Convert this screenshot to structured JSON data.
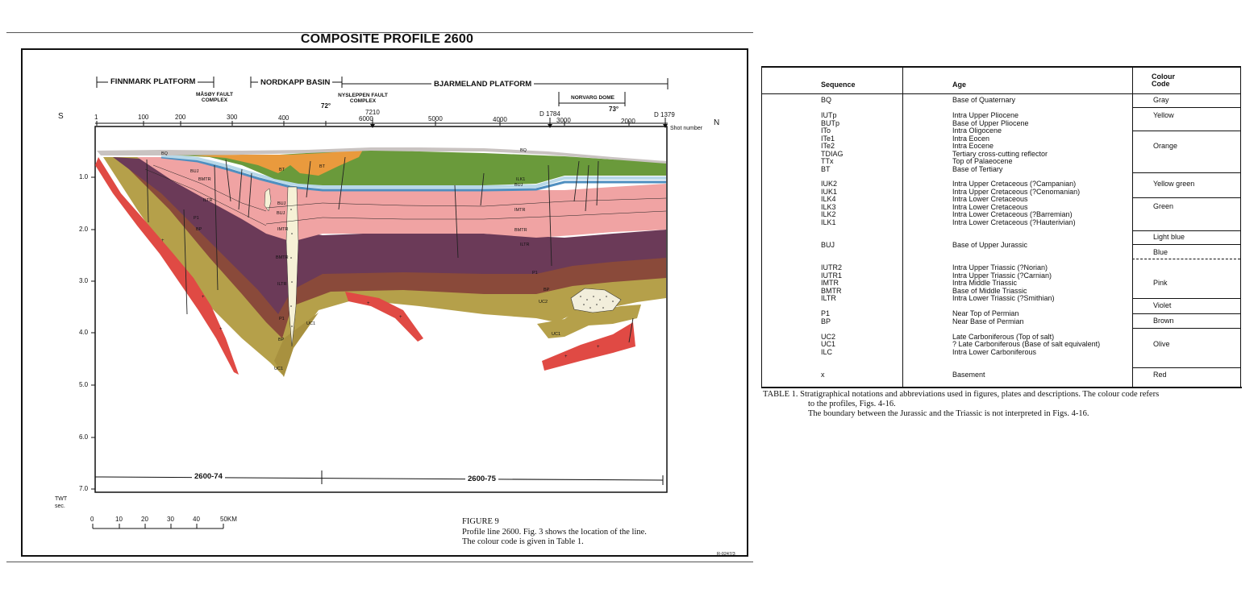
{
  "figure": {
    "title": "COMPOSITE PROFILE 2600",
    "provinces": {
      "finnmark": "FINNMARK PLATFORM",
      "nordkapp": "NORDKAPP BASIN",
      "bjarmeland": "BJARMELAND PLATFORM"
    },
    "features": {
      "masoy": "MÅSØY FAULT COMPLEX",
      "nysleppen": "NYSLEPPEN FAULT COMPLEX",
      "norvarg": "NORVARG DOME"
    },
    "latitudes": [
      "72°",
      "73°"
    ],
    "direction_south": "S",
    "direction_north": "N",
    "shot_numbers_lower": [
      "1",
      "100",
      "200",
      "300",
      "400"
    ],
    "shot_numbers_upper": [
      "6000",
      "5000",
      "4000",
      "3000",
      "2000"
    ],
    "well_markers": [
      "7210",
      "D 1784",
      "D 1379"
    ],
    "shot_number_label": "Shot number",
    "twt_ticks": [
      "1.0",
      "2.0",
      "3.0",
      "4.0",
      "5.0",
      "6.0",
      "7.0"
    ],
    "twt_label": "TWT",
    "twt_unit": "sec.",
    "horizon_labels": [
      "BQ",
      "BQ",
      "BT",
      "BT",
      "ILK1",
      "BUJ",
      "BUJ",
      "BMTR",
      "ILTR",
      "P1",
      "BP",
      "BUJ",
      "BUJ",
      "IMTR",
      "BMTR",
      "ILTR",
      "P1",
      "BP",
      "IMTR",
      "BMTR",
      "ILTR",
      "P1",
      "BP",
      "UC2",
      "UC1",
      "UC1",
      "UC1"
    ],
    "sections": [
      "2600-74",
      "2600-75"
    ],
    "scale_ticks": [
      "0",
      "10",
      "20",
      "30",
      "40",
      "50KM"
    ],
    "caption_title": "FIGURE 9",
    "caption_line1": "Profile line 2600. Fig. 3 shows the location of the line.",
    "caption_line2": "The colour code is given in Table 1.",
    "ref_code": "R-0247/3"
  },
  "colors": {
    "gray": "#c9c3c1",
    "yellow": "#e8d24a",
    "orange": "#e99a3d",
    "yellow_green": "#9ab33b",
    "green": "#6a9a3b",
    "light_blue": "#b8d8e8",
    "blue": "#4f8fc0",
    "pink": "#f0a3a3",
    "violet": "#6b3a58",
    "brown": "#8a4a3a",
    "olive": "#b5a04a",
    "red": "#e04a44"
  },
  "table": {
    "headers": {
      "sequence": "Sequence",
      "age": "Age",
      "colour_code_1": "Colour",
      "colour_code_2": "Code"
    },
    "groups": [
      {
        "rows": [
          {
            "seq": "BQ",
            "age": "Base of Quaternary"
          }
        ]
      },
      {
        "rows": [
          {
            "seq": "IUTp",
            "age": "Intra Upper Pliocene"
          },
          {
            "seq": "BUTp",
            "age": "Base of Upper Pliocene"
          },
          {
            "seq": "ITo",
            "age": "Intra Oligocene"
          },
          {
            "seq": "ITe1",
            "age": "Intra Eocen"
          },
          {
            "seq": "ITe2",
            "age": "Intra Eocene"
          },
          {
            "seq": "TDIAG",
            "age": "Tertiary cross-cutting reflector"
          },
          {
            "seq": "TTx",
            "age": "Top of Palaeocene"
          },
          {
            "seq": "BT",
            "age": "Base of Tertiary"
          }
        ]
      },
      {
        "rows": [
          {
            "seq": "IUK2",
            "age": "Intra Upper Cretaceous (?Campanian)"
          },
          {
            "seq": "IUK1",
            "age": "Intra Upper Cretaceous (?Cenomanian)"
          },
          {
            "seq": "ILK4",
            "age": "Intra Lower Cretaceous"
          },
          {
            "seq": "ILK3",
            "age": "Intra Lower Cretaceous"
          },
          {
            "seq": "ILK2",
            "age": "Intra Lower Cretaceous (?Barremian)"
          },
          {
            "seq": "ILK1",
            "age": "Intra Lower Cretaceous (?Hauterivian)"
          }
        ]
      },
      {
        "rows": [
          {
            "seq": "BUJ",
            "age": "Base of Upper Jurassic"
          }
        ]
      },
      {
        "rows": [
          {
            "seq": "IUTR2",
            "age": "Intra Upper Triassic (?Norian)"
          },
          {
            "seq": "IUTR1",
            "age": "Intra Upper Triassic (?Carnian)"
          },
          {
            "seq": "IMTR",
            "age": "Intra Middle Triassic"
          },
          {
            "seq": "BMTR",
            "age": "Base of Middle Triassic"
          },
          {
            "seq": "ILTR",
            "age": "Intra Lower Triassic (?Smithian)"
          }
        ]
      },
      {
        "rows": [
          {
            "seq": "P1",
            "age": "Near Top of Permian"
          },
          {
            "seq": "BP",
            "age": "Near Base of Permian"
          }
        ]
      },
      {
        "rows": [
          {
            "seq": "UC2",
            "age": "Late Carboniferous (Top of salt)"
          },
          {
            "seq": "UC1",
            "age": "? Late Carboniferous (Base of salt equivalent)"
          },
          {
            "seq": "ILC",
            "age": "Intra Lower Carboniferous"
          }
        ]
      },
      {
        "rows": [
          {
            "seq": "x",
            "age": "Basement"
          }
        ]
      }
    ],
    "colour_codes": [
      "Gray",
      "Yellow",
      "Orange",
      "Yellow green",
      "Green",
      "Light blue",
      "Blue",
      "Pink",
      "Violet",
      "Brown",
      "Olive",
      "Red"
    ],
    "caption_line1": "TABLE 1. Stratigraphical notations and abbreviations used in figures, plates and descriptions. The colour code refers",
    "caption_line2": "to the profiles, Figs. 4-16.",
    "caption_line3": "The boundary between the Jurassic and the Triassic is not interpreted in Figs. 4-16."
  }
}
